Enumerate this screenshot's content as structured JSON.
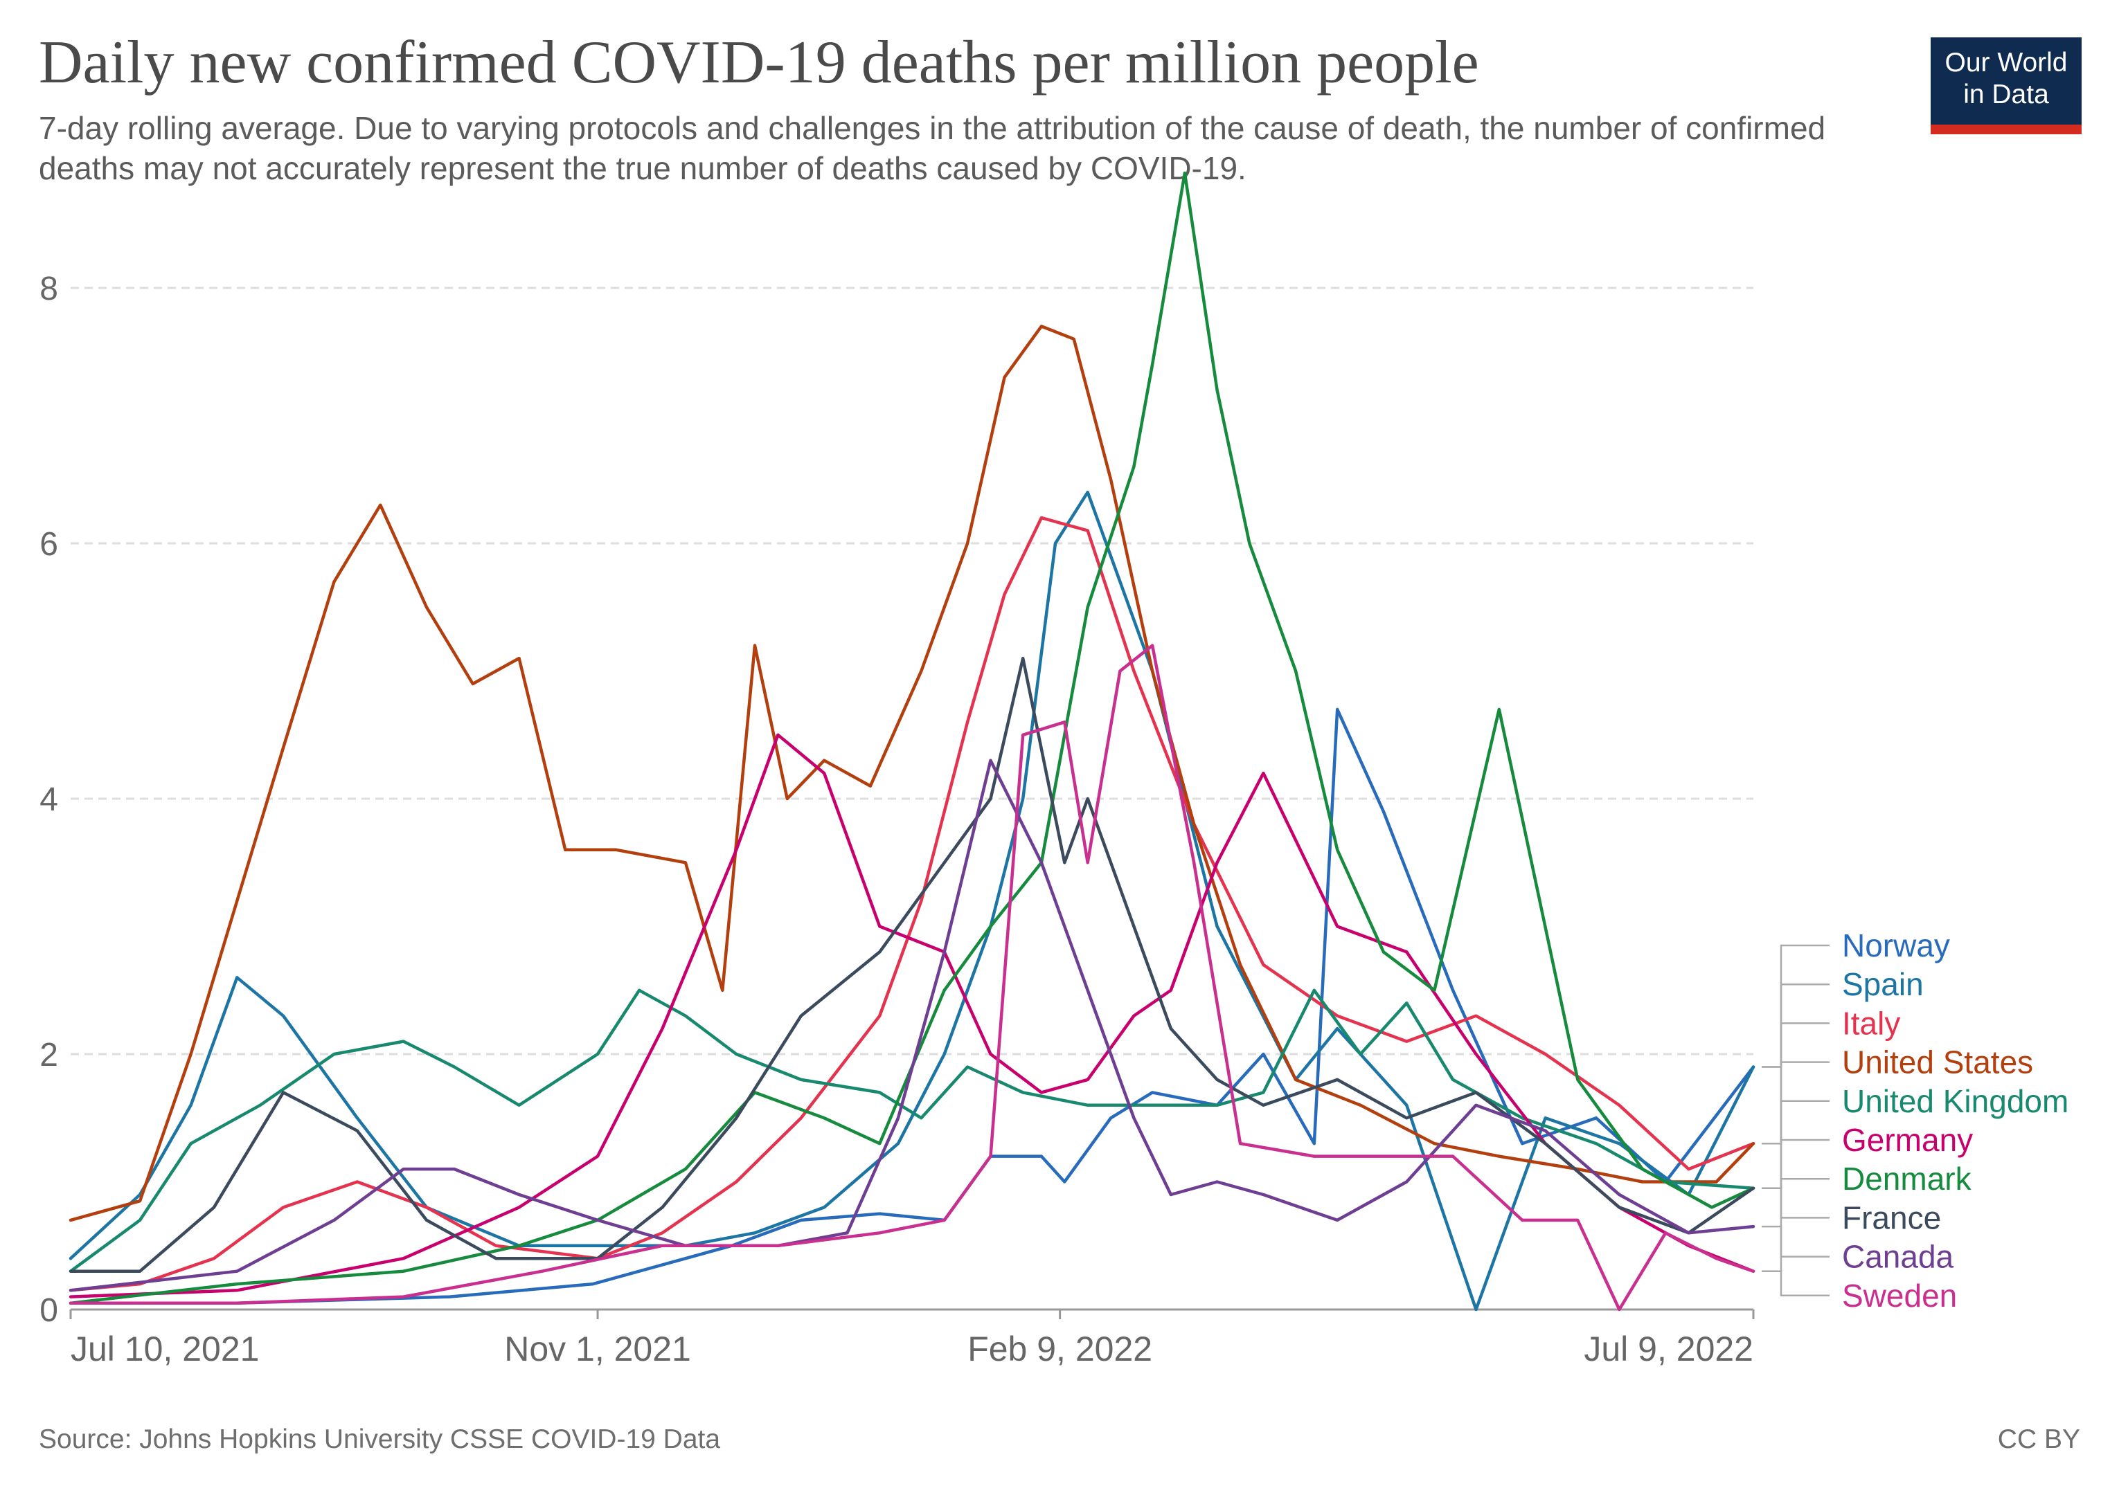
{
  "header": {
    "title": "Daily new confirmed COVID-19 deaths per million people",
    "subtitle": "7-day rolling average. Due to varying protocols and challenges in the attribution of the cause of death, the number of confirmed deaths may not accurately represent the true number of deaths caused by COVID-19.",
    "logo_line1": "Our World",
    "logo_line2": "in Data"
  },
  "footer": {
    "source": "Source: Johns Hopkins University CSSE COVID-19 Data",
    "license": "CC BY"
  },
  "chart_data": {
    "type": "line",
    "title": "Daily new confirmed COVID-19 deaths per million people",
    "xlabel": "",
    "ylabel": "",
    "x_range": [
      "2021-07-10",
      "2022-07-09"
    ],
    "ylim": [
      0,
      8.9
    ],
    "y_ticks": [
      0,
      2,
      4,
      6,
      8
    ],
    "x_ticks": [
      {
        "date": "2021-07-10",
        "label": "Jul 10, 2021"
      },
      {
        "date": "2021-11-01",
        "label": "Nov 1, 2021"
      },
      {
        "date": "2022-02-09",
        "label": "Feb 9, 2022"
      },
      {
        "date": "2022-07-09",
        "label": "Jul 9, 2022"
      }
    ],
    "grid": "horizontal dashed",
    "legend": "right, end-of-line labels",
    "series": [
      {
        "name": "Norway",
        "color": "#286bbb",
        "x": [
          "2021-07-10",
          "2021-08-15",
          "2021-09-30",
          "2021-10-31",
          "2021-11-30",
          "2021-12-15",
          "2022-01-01",
          "2022-01-15",
          "2022-01-25",
          "2022-02-05",
          "2022-02-10",
          "2022-02-20",
          "2022-03-01",
          "2022-03-15",
          "2022-03-25",
          "2022-04-05",
          "2022-04-10",
          "2022-04-20",
          "2022-05-05",
          "2022-05-20",
          "2022-06-05",
          "2022-06-20",
          "2022-07-09"
        ],
        "values": [
          0.05,
          0.05,
          0.1,
          0.2,
          0.5,
          0.7,
          0.75,
          0.7,
          1.2,
          1.2,
          1.0,
          1.5,
          1.7,
          1.6,
          2.0,
          1.3,
          4.7,
          3.9,
          2.5,
          1.3,
          1.5,
          1.0,
          1.9
        ]
      },
      {
        "name": "Spain",
        "color": "#1d75a4",
        "x": [
          "2021-07-10",
          "2021-07-25",
          "2021-08-05",
          "2021-08-15",
          "2021-08-25",
          "2021-09-10",
          "2021-09-25",
          "2021-10-15",
          "2021-11-01",
          "2021-11-20",
          "2021-12-05",
          "2021-12-20",
          "2022-01-05",
          "2022-01-15",
          "2022-01-25",
          "2022-02-01",
          "2022-02-08",
          "2022-02-15",
          "2022-03-01",
          "2022-03-15",
          "2022-04-01",
          "2022-04-10",
          "2022-04-25",
          "2022-05-10",
          "2022-05-25",
          "2022-06-10",
          "2022-06-25",
          "2022-07-09"
        ],
        "values": [
          0.4,
          0.9,
          1.6,
          2.6,
          2.3,
          1.5,
          0.8,
          0.5,
          0.5,
          0.5,
          0.6,
          0.8,
          1.3,
          2.0,
          3.0,
          4.0,
          6.0,
          6.4,
          5.0,
          3.0,
          1.8,
          2.2,
          1.6,
          0.0,
          1.5,
          1.3,
          0.9,
          1.9
        ]
      },
      {
        "name": "Italy",
        "color": "#e4334e",
        "x": [
          "2021-07-10",
          "2021-07-25",
          "2021-08-10",
          "2021-08-25",
          "2021-09-10",
          "2021-09-25",
          "2021-10-10",
          "2021-11-01",
          "2021-11-15",
          "2021-12-01",
          "2021-12-15",
          "2022-01-01",
          "2022-01-10",
          "2022-01-20",
          "2022-01-28",
          "2022-02-05",
          "2022-02-15",
          "2022-02-25",
          "2022-03-10",
          "2022-03-25",
          "2022-04-10",
          "2022-04-25",
          "2022-05-10",
          "2022-05-25",
          "2022-06-10",
          "2022-06-25",
          "2022-07-09"
        ],
        "values": [
          0.15,
          0.2,
          0.4,
          0.8,
          1.0,
          0.8,
          0.5,
          0.4,
          0.6,
          1.0,
          1.5,
          2.3,
          3.2,
          4.6,
          5.6,
          6.2,
          6.1,
          5.0,
          3.8,
          2.7,
          2.3,
          2.1,
          2.3,
          2.0,
          1.6,
          1.1,
          1.3
        ]
      },
      {
        "name": "United States",
        "color": "#b33f0f",
        "x": [
          "2021-07-10",
          "2021-07-25",
          "2021-08-05",
          "2021-08-15",
          "2021-08-25",
          "2021-09-05",
          "2021-09-15",
          "2021-09-25",
          "2021-10-05",
          "2021-10-15",
          "2021-10-25",
          "2021-11-05",
          "2021-11-20",
          "2021-11-28",
          "2021-12-05",
          "2021-12-12",
          "2021-12-20",
          "2021-12-30",
          "2022-01-10",
          "2022-01-20",
          "2022-01-28",
          "2022-02-05",
          "2022-02-12",
          "2022-02-20",
          "2022-03-01",
          "2022-03-10",
          "2022-03-20",
          "2022-04-01",
          "2022-04-15",
          "2022-05-01",
          "2022-05-15",
          "2022-06-01",
          "2022-06-15",
          "2022-07-01",
          "2022-07-09"
        ],
        "values": [
          0.7,
          0.85,
          2.0,
          3.2,
          4.4,
          5.7,
          6.3,
          5.5,
          4.9,
          5.1,
          3.6,
          3.6,
          3.5,
          2.5,
          5.2,
          4.0,
          4.3,
          4.1,
          5.0,
          6.0,
          7.3,
          7.7,
          7.6,
          6.5,
          5.0,
          3.8,
          2.7,
          1.8,
          1.6,
          1.3,
          1.2,
          1.1,
          1.0,
          1.0,
          1.3
        ]
      },
      {
        "name": "United Kingdom",
        "color": "#18896f",
        "x": [
          "2021-07-10",
          "2021-07-25",
          "2021-08-05",
          "2021-08-20",
          "2021-09-05",
          "2021-09-20",
          "2021-10-01",
          "2021-10-15",
          "2021-11-01",
          "2021-11-10",
          "2021-11-20",
          "2021-12-01",
          "2021-12-15",
          "2022-01-01",
          "2022-01-10",
          "2022-01-20",
          "2022-02-01",
          "2022-02-15",
          "2022-02-25",
          "2022-03-05",
          "2022-03-15",
          "2022-03-25",
          "2022-04-05",
          "2022-04-15",
          "2022-04-25",
          "2022-05-05",
          "2022-05-20",
          "2022-06-05",
          "2022-06-20",
          "2022-07-09"
        ],
        "values": [
          0.3,
          0.7,
          1.3,
          1.6,
          2.0,
          2.1,
          1.9,
          1.6,
          2.0,
          2.5,
          2.3,
          2.0,
          1.8,
          1.7,
          1.5,
          1.9,
          1.7,
          1.6,
          1.6,
          1.6,
          1.6,
          1.7,
          2.5,
          2.0,
          2.4,
          1.8,
          1.5,
          1.3,
          1.0,
          0.95
        ]
      },
      {
        "name": "Germany",
        "color": "#c8006e",
        "x": [
          "2021-07-10",
          "2021-08-15",
          "2021-09-20",
          "2021-10-15",
          "2021-11-01",
          "2021-11-15",
          "2021-12-01",
          "2021-12-10",
          "2021-12-20",
          "2022-01-01",
          "2022-01-15",
          "2022-01-25",
          "2022-02-05",
          "2022-02-15",
          "2022-02-25",
          "2022-03-05",
          "2022-03-15",
          "2022-03-25",
          "2022-04-10",
          "2022-04-25",
          "2022-05-10",
          "2022-05-25",
          "2022-06-10",
          "2022-06-25",
          "2022-07-09"
        ],
        "values": [
          0.1,
          0.15,
          0.4,
          0.8,
          1.2,
          2.2,
          3.6,
          4.5,
          4.2,
          3.0,
          2.8,
          2.0,
          1.7,
          1.8,
          2.3,
          2.5,
          3.5,
          4.2,
          3.0,
          2.8,
          2.0,
          1.3,
          0.8,
          0.5,
          0.3
        ]
      },
      {
        "name": "Denmark",
        "color": "#168a3d",
        "x": [
          "2021-07-10",
          "2021-08-15",
          "2021-09-20",
          "2021-10-15",
          "2021-11-01",
          "2021-11-20",
          "2021-12-05",
          "2021-12-20",
          "2022-01-01",
          "2022-01-15",
          "2022-01-25",
          "2022-02-05",
          "2022-02-15",
          "2022-02-25",
          "2022-03-01",
          "2022-03-08",
          "2022-03-15",
          "2022-03-22",
          "2022-04-01",
          "2022-04-10",
          "2022-04-20",
          "2022-05-01",
          "2022-05-15",
          "2022-06-01",
          "2022-06-15",
          "2022-06-30",
          "2022-07-09"
        ],
        "values": [
          0.05,
          0.2,
          0.3,
          0.5,
          0.7,
          1.1,
          1.7,
          1.5,
          1.3,
          2.5,
          3.0,
          3.5,
          5.5,
          6.6,
          7.4,
          8.9,
          7.2,
          6.0,
          5.0,
          3.6,
          2.8,
          2.5,
          4.7,
          1.8,
          1.1,
          0.8,
          0.95
        ]
      },
      {
        "name": "France",
        "color": "#3b4a5c",
        "x": [
          "2021-07-10",
          "2021-07-25",
          "2021-08-10",
          "2021-08-25",
          "2021-09-10",
          "2021-09-25",
          "2021-10-10",
          "2021-11-01",
          "2021-11-15",
          "2021-12-01",
          "2021-12-15",
          "2022-01-01",
          "2022-01-15",
          "2022-01-25",
          "2022-02-01",
          "2022-02-10",
          "2022-02-15",
          "2022-02-25",
          "2022-03-05",
          "2022-03-15",
          "2022-03-25",
          "2022-04-10",
          "2022-04-25",
          "2022-05-10",
          "2022-05-25",
          "2022-06-10",
          "2022-06-25",
          "2022-07-09"
        ],
        "values": [
          0.3,
          0.3,
          0.8,
          1.7,
          1.4,
          0.7,
          0.4,
          0.4,
          0.8,
          1.5,
          2.3,
          2.8,
          3.5,
          4.0,
          5.1,
          3.5,
          4.0,
          3.0,
          2.2,
          1.8,
          1.6,
          1.8,
          1.5,
          1.7,
          1.3,
          0.8,
          0.6,
          0.95
        ]
      },
      {
        "name": "Canada",
        "color": "#6d3e91",
        "x": [
          "2021-07-10",
          "2021-08-15",
          "2021-09-05",
          "2021-09-20",
          "2021-10-01",
          "2021-10-15",
          "2021-11-01",
          "2021-11-20",
          "2021-12-10",
          "2021-12-25",
          "2022-01-05",
          "2022-01-15",
          "2022-01-25",
          "2022-02-05",
          "2022-02-15",
          "2022-02-25",
          "2022-03-05",
          "2022-03-15",
          "2022-03-25",
          "2022-04-10",
          "2022-04-25",
          "2022-05-10",
          "2022-05-25",
          "2022-06-10",
          "2022-06-25",
          "2022-07-09"
        ],
        "values": [
          0.15,
          0.3,
          0.7,
          1.1,
          1.1,
          0.9,
          0.7,
          0.5,
          0.5,
          0.6,
          1.5,
          2.8,
          4.3,
          3.5,
          2.5,
          1.5,
          0.9,
          1.0,
          0.9,
          0.7,
          1.0,
          1.6,
          1.4,
          0.9,
          0.6,
          0.65
        ]
      },
      {
        "name": "Sweden",
        "color": "#c92f8f",
        "x": [
          "2021-07-10",
          "2021-08-15",
          "2021-09-20",
          "2021-10-20",
          "2021-11-15",
          "2021-12-10",
          "2022-01-01",
          "2022-01-15",
          "2022-01-25",
          "2022-02-01",
          "2022-02-10",
          "2022-02-15",
          "2022-02-22",
          "2022-03-01",
          "2022-03-10",
          "2022-03-20",
          "2022-04-05",
          "2022-04-20",
          "2022-05-05",
          "2022-05-20",
          "2022-06-01",
          "2022-06-10",
          "2022-06-20",
          "2022-07-01",
          "2022-07-09"
        ],
        "values": [
          0.05,
          0.05,
          0.1,
          0.3,
          0.5,
          0.5,
          0.6,
          0.7,
          1.2,
          4.5,
          4.6,
          3.5,
          5.0,
          5.2,
          3.5,
          1.3,
          1.2,
          1.2,
          1.2,
          0.7,
          0.7,
          0.0,
          0.6,
          0.4,
          0.3
        ]
      }
    ]
  }
}
